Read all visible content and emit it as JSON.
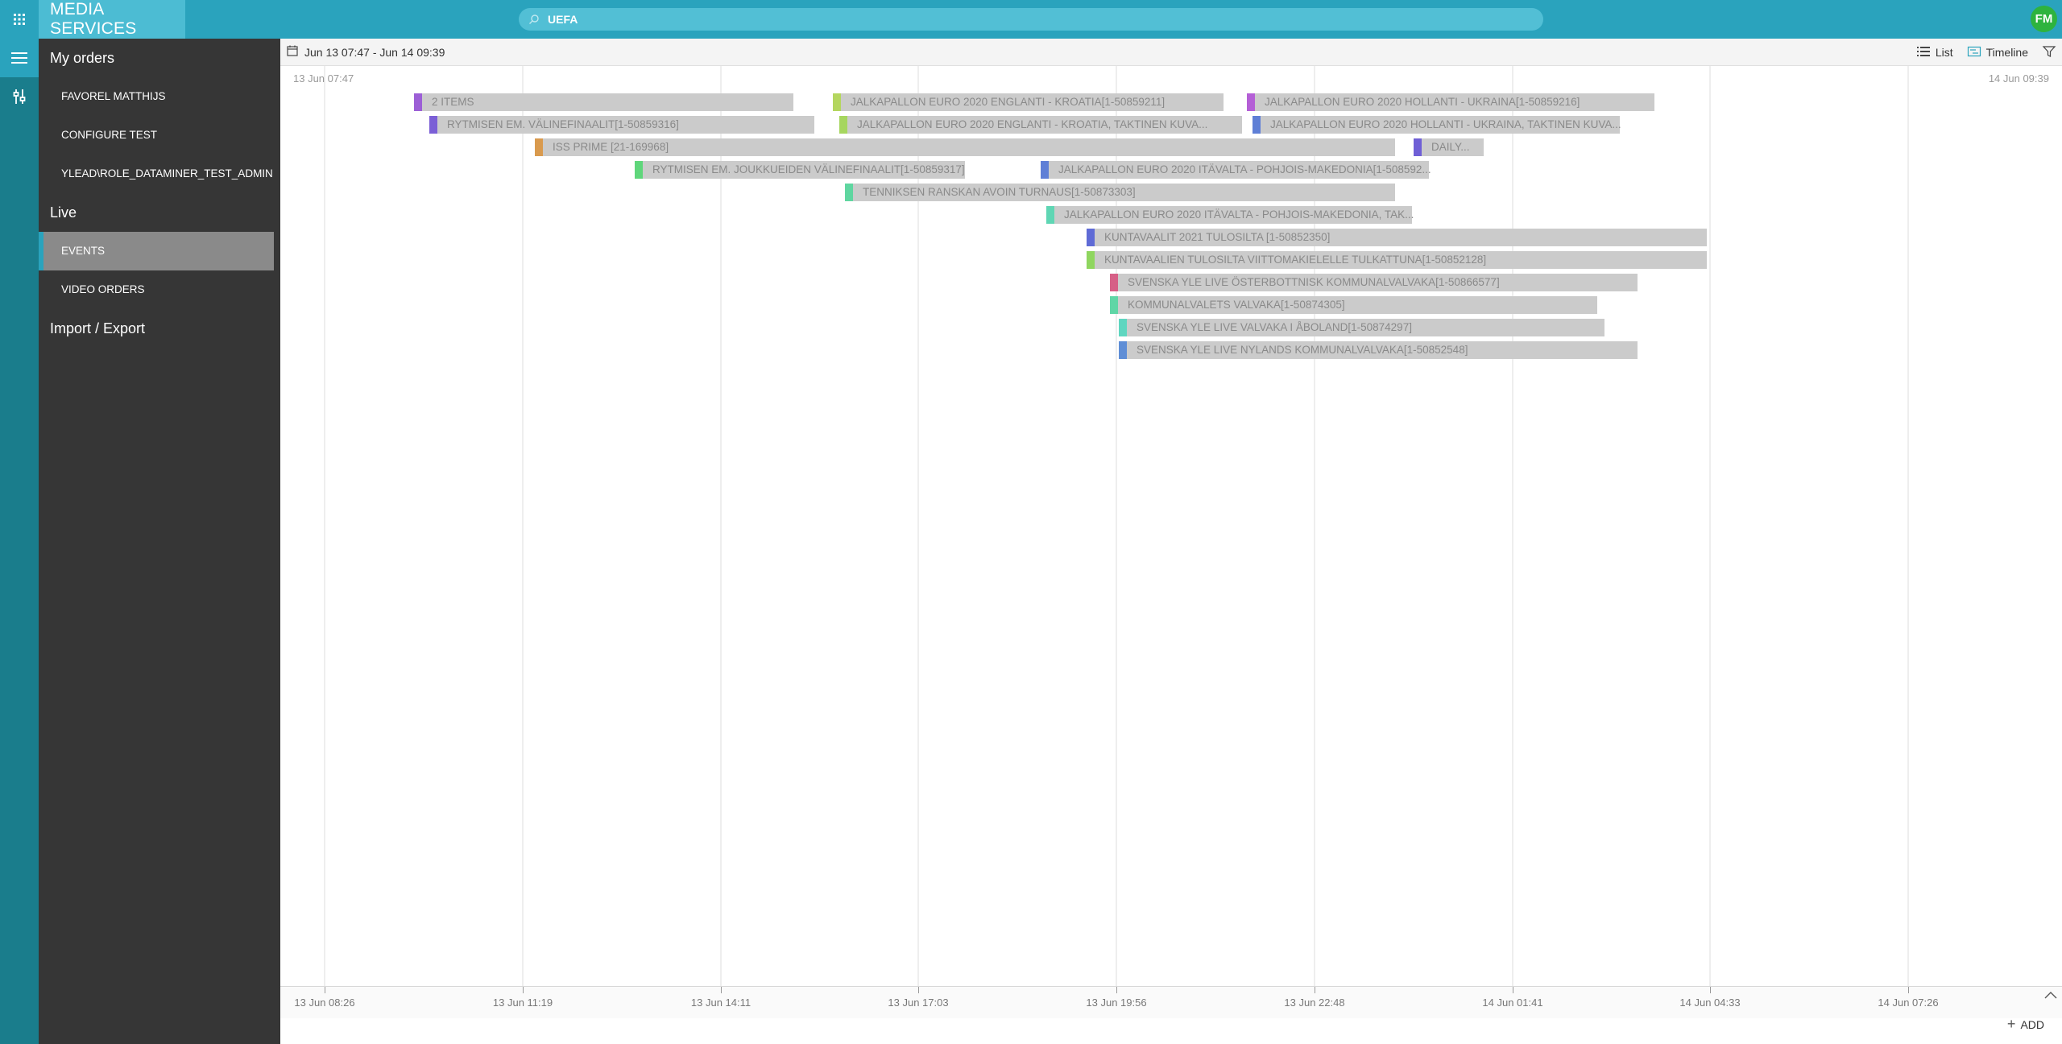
{
  "app": {
    "title": "MEDIA SERVICES"
  },
  "search": {
    "value": "UEFA"
  },
  "user": {
    "initials": "FM"
  },
  "colors": {
    "topbar": "#2aa3bd",
    "sidebar": "#363636",
    "rail": "#1a7d8c",
    "avatar": "#2eb33e"
  },
  "sidebar": {
    "groups": [
      {
        "title": "My orders",
        "items": [
          "FAVOREL MATTHIJS",
          "CONFIGURE TEST",
          "YLEAD\\ROLE_DATAMINER_TEST_ADMIN"
        ]
      },
      {
        "title": "Live",
        "items": [
          "EVENTS",
          "VIDEO ORDERS"
        ],
        "selected": "EVENTS"
      },
      {
        "title": "Import / Export",
        "items": []
      }
    ]
  },
  "toolbar": {
    "date_range": "Jun 13 07:47 - Jun 14 09:39",
    "list_label": "List",
    "timeline_label": "Timeline"
  },
  "timeline": {
    "range_start": "13 Jun 07:47",
    "range_end": "14 Jun 09:39",
    "ticks": [
      "13 Jun 08:26",
      "13 Jun 11:19",
      "13 Jun 14:11",
      "13 Jun 17:03",
      "13 Jun 19:56",
      "13 Jun 22:48",
      "14 Jun 01:41",
      "14 Jun 04:33",
      "14 Jun 07:26"
    ],
    "events": [
      {
        "label": "2 ITEMS",
        "color": "#9c5fd6"
      },
      {
        "label": "RYTMISEN EM. VÄLINEFINAALIT[1-50859316]",
        "color": "#7b5fd6"
      },
      {
        "label": "ISS PRIME [21-169968]",
        "color": "#d99a4e"
      },
      {
        "label": "RYTMISEN EM. JOUKKUEIDEN VÄLINEFINAALIT[1-50859317]",
        "color": "#5fd67b"
      },
      {
        "label": "JALKAPALLON EURO 2020 ENGLANTI - KROATIA[1-50859211]",
        "color": "#b4d65f"
      },
      {
        "label": "JALKAPALLON EURO 2020 ENGLANTI - KROATIA, TAKTINEN KUVA...",
        "color": "#a6d65f"
      },
      {
        "label": "TENNIKSEN RANSKAN AVOIN TURNAUS[1-50873303]",
        "color": "#5fd6a0"
      },
      {
        "label": "JALKAPALLON EURO 2020 ITÄVALTA - POHJOIS-MAKEDONIA[1-508592...",
        "color": "#5f7fd6"
      },
      {
        "label": "JALKAPALLON EURO 2020 ITÄVALTA - POHJOIS-MAKEDONIA, TAK...",
        "color": "#5fd6b4"
      },
      {
        "label": "KUNTAVAALIT 2021 TULOSILTA [1-50852350]",
        "color": "#5f6bd6"
      },
      {
        "label": "KUNTAVAALIEN TULOSILTA VIITTOMAKIELELLE TULKATTUNA[1-50852128]",
        "color": "#8fd65f"
      },
      {
        "label": "SVENSKA YLE LIVE ÖSTERBOTTNISK KOMMUNALVALVAKA[1-50866577]",
        "color": "#d65f86"
      },
      {
        "label": "KOMMUNALVALETS VALVAKA[1-50874305]",
        "color": "#5fd6a6"
      },
      {
        "label": "SVENSKA YLE LIVE VALVAKA I ÅBOLAND[1-50874297]",
        "color": "#5fd6c0"
      },
      {
        "label": "SVENSKA YLE LIVE NYLANDS KOMMUNALVALVAKA[1-50852548]",
        "color": "#5f8ed6"
      },
      {
        "label": "JALKAPALLON EURO 2020 HOLLANTI - UKRAINA[1-50859216]",
        "color": "#b45fd6"
      },
      {
        "label": "JALKAPALLON EURO 2020 HOLLANTI - UKRAINA, TAKTINEN KUVA...",
        "color": "#5f7fd6"
      },
      {
        "label": "DAILY...",
        "color": "#6f5fd6"
      }
    ]
  },
  "actions": {
    "add_label": "ADD"
  }
}
